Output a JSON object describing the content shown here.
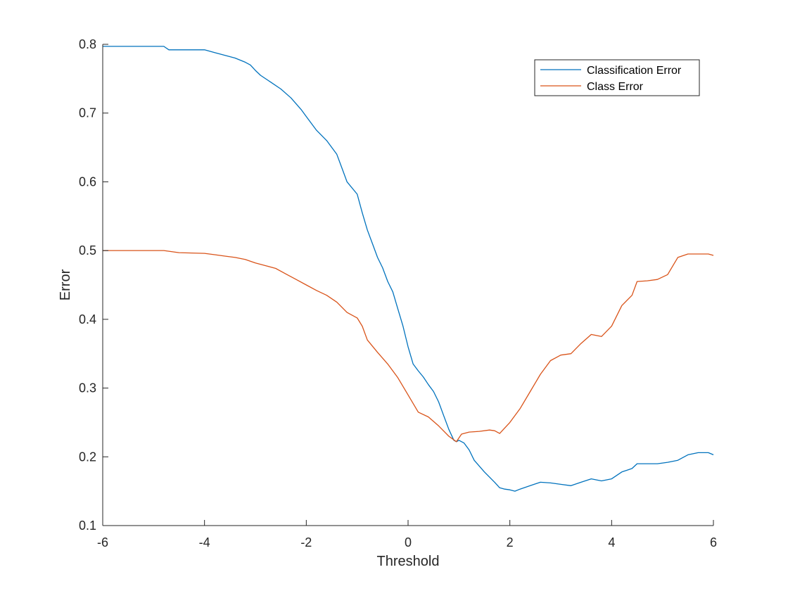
{
  "chart_data": {
    "type": "line",
    "title": "",
    "xlabel": "Threshold",
    "ylabel": "Error",
    "xlim": [
      -6,
      6
    ],
    "ylim": [
      0.1,
      0.8
    ],
    "xticks": [
      -6,
      -4,
      -2,
      0,
      2,
      4,
      6
    ],
    "yticks": [
      0.1,
      0.2,
      0.3,
      0.4,
      0.5,
      0.6,
      0.7,
      0.8
    ],
    "xtick_labels": [
      "-6",
      "-4",
      "-2",
      "0",
      "2",
      "4",
      "6"
    ],
    "ytick_labels": [
      "0.1",
      "0.2",
      "0.3",
      "0.4",
      "0.5",
      "0.6",
      "0.7",
      "0.8"
    ],
    "grid": false,
    "legend_position": "top-right",
    "series": [
      {
        "name": "Classification Error",
        "color": "#0072BD",
        "x": [
          -6,
          -5.5,
          -5.0,
          -4.8,
          -4.7,
          -4.5,
          -4.0,
          -3.8,
          -3.6,
          -3.4,
          -3.2,
          -3.1,
          -3.0,
          -2.9,
          -2.7,
          -2.5,
          -2.3,
          -2.1,
          -2.0,
          -1.8,
          -1.6,
          -1.4,
          -1.3,
          -1.2,
          -1.0,
          -0.9,
          -0.8,
          -0.7,
          -0.6,
          -0.5,
          -0.4,
          -0.3,
          -0.2,
          -0.1,
          0.0,
          0.1,
          0.2,
          0.3,
          0.4,
          0.5,
          0.6,
          0.7,
          0.8,
          0.9,
          0.95,
          1.0,
          1.1,
          1.2,
          1.3,
          1.5,
          1.7,
          1.8,
          1.9,
          2.0,
          2.1,
          2.2,
          2.4,
          2.6,
          2.8,
          3.0,
          3.2,
          3.4,
          3.6,
          3.8,
          4.0,
          4.2,
          4.4,
          4.5,
          4.7,
          4.9,
          5.1,
          5.3,
          5.5,
          5.7,
          5.9,
          6.0
        ],
        "values": [
          0.797,
          0.797,
          0.797,
          0.797,
          0.792,
          0.792,
          0.792,
          0.788,
          0.784,
          0.78,
          0.774,
          0.77,
          0.762,
          0.755,
          0.745,
          0.735,
          0.722,
          0.705,
          0.695,
          0.675,
          0.66,
          0.64,
          0.62,
          0.6,
          0.582,
          0.555,
          0.53,
          0.51,
          0.49,
          0.475,
          0.455,
          0.44,
          0.415,
          0.39,
          0.36,
          0.335,
          0.325,
          0.316,
          0.305,
          0.295,
          0.28,
          0.26,
          0.24,
          0.224,
          0.222,
          0.224,
          0.22,
          0.21,
          0.195,
          0.178,
          0.163,
          0.155,
          0.153,
          0.152,
          0.15,
          0.153,
          0.158,
          0.163,
          0.162,
          0.16,
          0.158,
          0.163,
          0.168,
          0.165,
          0.168,
          0.178,
          0.183,
          0.19,
          0.19,
          0.19,
          0.192,
          0.195,
          0.203,
          0.206,
          0.206,
          0.203
        ]
      },
      {
        "name": "Class Error",
        "color": "#D95319",
        "x": [
          -6,
          -5.5,
          -5.0,
          -4.8,
          -4.5,
          -4.0,
          -3.8,
          -3.6,
          -3.4,
          -3.2,
          -3.0,
          -2.8,
          -2.6,
          -2.4,
          -2.2,
          -2.0,
          -1.8,
          -1.6,
          -1.4,
          -1.2,
          -1.0,
          -0.9,
          -0.8,
          -0.6,
          -0.4,
          -0.2,
          0.0,
          0.2,
          0.4,
          0.6,
          0.8,
          0.95,
          1.05,
          1.2,
          1.4,
          1.6,
          1.7,
          1.8,
          2.0,
          2.2,
          2.4,
          2.6,
          2.8,
          3.0,
          3.2,
          3.4,
          3.6,
          3.8,
          4.0,
          4.2,
          4.4,
          4.5,
          4.7,
          4.9,
          5.1,
          5.3,
          5.5,
          5.7,
          5.9,
          6.0
        ],
        "values": [
          0.5,
          0.5,
          0.5,
          0.5,
          0.497,
          0.496,
          0.494,
          0.492,
          0.49,
          0.487,
          0.482,
          0.478,
          0.474,
          0.466,
          0.458,
          0.45,
          0.442,
          0.435,
          0.425,
          0.41,
          0.402,
          0.39,
          0.37,
          0.352,
          0.335,
          0.315,
          0.29,
          0.265,
          0.258,
          0.245,
          0.23,
          0.222,
          0.233,
          0.236,
          0.237,
          0.239,
          0.238,
          0.234,
          0.25,
          0.27,
          0.295,
          0.32,
          0.34,
          0.348,
          0.35,
          0.365,
          0.378,
          0.375,
          0.39,
          0.42,
          0.435,
          0.455,
          0.456,
          0.458,
          0.465,
          0.49,
          0.495,
          0.495,
          0.495,
          0.493
        ]
      }
    ]
  }
}
